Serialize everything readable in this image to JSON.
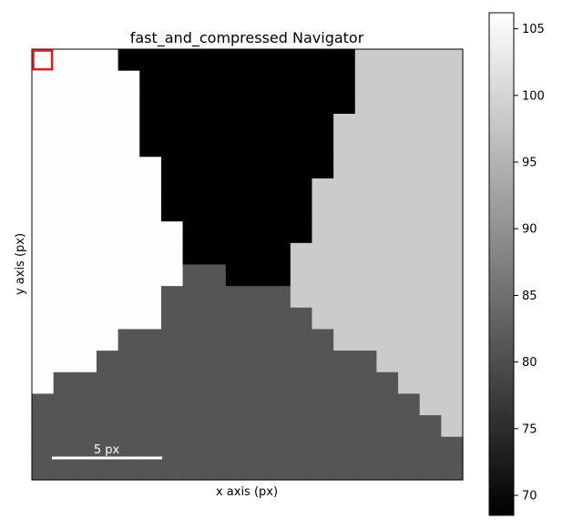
{
  "chart_data": {
    "type": "heatmap",
    "title": "fast_and_compressed Navigator",
    "xlabel": "x axis (px)",
    "ylabel": "y axis (px)",
    "grid": false,
    "n_cols": 20,
    "n_rows": 20,
    "levels": {
      "W": 106,
      "G": 98.5,
      "D": 81,
      "B": 68.5
    },
    "rows": [
      "WWWWBBBBBBBBBBBGGGGG",
      "WWWWWBBBBBBBBBBGGGGG",
      "WWWWWBBBBBBBBBBGGGGG",
      "WWWWWBBBBBBBBBGGGGGG",
      "WWWWWBBBBBBBBBGGGGGG",
      "WWWWWWBBBBBBBBGGGGGG",
      "WWWWWWBBBBBBBGGGGGGG",
      "WWWWWWBBBBBBBGGGGGGG",
      "WWWWWWWBBBBBBGGGGGGG",
      "WWWWWWWBBBBBGGGGGGGG",
      "WWWWWWWDDBBBGGGGGGGG",
      "WWWWWWDDDDDDGGGGGGGG",
      "WWWWWWDDDDDDDGGGGGGG",
      "WWWWDDDDDDDDDDGGGGGG",
      "WWWDDDDDDDDDDDDDGGGG",
      "WDDDDDDDDDDDDDDDDGGG",
      "DDDDDDDDDDDDDDDDDDGG",
      "DDDDDDDDDDDDDDDDDDDG",
      "DDDDDDDDDDDDDDDDDDDD",
      "DDDDDDDDDDDDDDDDDDDD"
    ],
    "colorbar": {
      "min": 68.5,
      "max": 106.2,
      "ticks": [
        70,
        75,
        80,
        85,
        90,
        95,
        100,
        105
      ],
      "tick_labels": [
        "70",
        "75",
        "80",
        "85",
        "90",
        "95",
        "100",
        "105"
      ]
    },
    "scalebar": {
      "label": "5 px",
      "length": 5
    },
    "selection_marker": {
      "col": 0,
      "row": 0,
      "color": "#e31a1c"
    }
  }
}
